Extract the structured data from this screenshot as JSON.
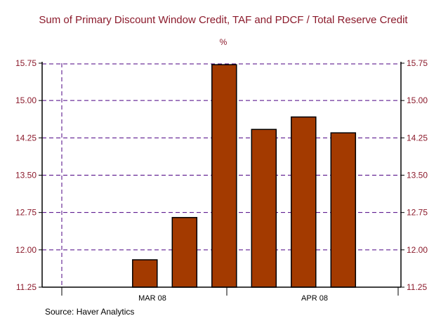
{
  "chart_data": {
    "type": "bar",
    "title": "Sum of Primary Discount Window Credit, TAF and PDCF / Total Reserve Credit",
    "unit_label": "%",
    "source": "Source: Haver Analytics",
    "ylim": [
      11.25,
      15.75
    ],
    "yticks": [
      "15.75",
      "15.00",
      "14.25",
      "13.50",
      "12.75",
      "12.00",
      "11.25"
    ],
    "ytick_values": [
      15.75,
      15.0,
      14.25,
      13.5,
      12.75,
      12.0,
      11.25
    ],
    "period_labels": [
      "MAR 08",
      "APR 08"
    ],
    "values": [
      null,
      null,
      11.8,
      12.65,
      15.72,
      14.42,
      14.67,
      14.35
    ],
    "grid": true,
    "colors": {
      "bar": "#a33a00",
      "grid": "#4b0082",
      "text": "#8b1a2b"
    }
  }
}
